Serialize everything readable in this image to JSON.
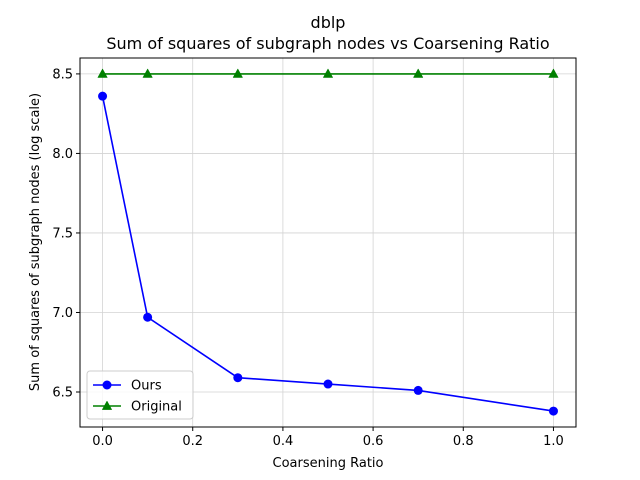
{
  "chart_data": {
    "type": "line",
    "title": "dblp",
    "subtitle": "Sum of squares of subgraph nodes vs Coarsening Ratio",
    "xlabel": "Coarsening Ratio",
    "ylabel": "Sum of squares of subgraph nodes (log scale)",
    "xlim": [
      -0.05,
      1.05
    ],
    "ylim": [
      6.28,
      8.6
    ],
    "xticks": [
      0.0,
      0.2,
      0.4,
      0.6,
      0.8,
      1.0
    ],
    "xtick_labels": [
      "0.0",
      "0.2",
      "0.4",
      "0.6",
      "0.8",
      "1.0"
    ],
    "yticks": [
      6.5,
      7.0,
      7.5,
      8.0,
      8.5
    ],
    "ytick_labels": [
      "6.5",
      "7.0",
      "7.5",
      "8.0",
      "8.5"
    ],
    "grid": true,
    "legend_position": "lower-left",
    "series": [
      {
        "name": "Ours",
        "color": "#0000ff",
        "marker": "circle",
        "x": [
          0.0,
          0.1,
          0.3,
          0.5,
          0.7,
          1.0
        ],
        "y": [
          8.36,
          6.97,
          6.59,
          6.55,
          6.51,
          6.38
        ]
      },
      {
        "name": "Original",
        "color": "#008000",
        "marker": "triangle",
        "x": [
          0.0,
          0.1,
          0.3,
          0.5,
          0.7,
          1.0
        ],
        "y": [
          8.5,
          8.5,
          8.5,
          8.5,
          8.5,
          8.5
        ]
      }
    ]
  }
}
